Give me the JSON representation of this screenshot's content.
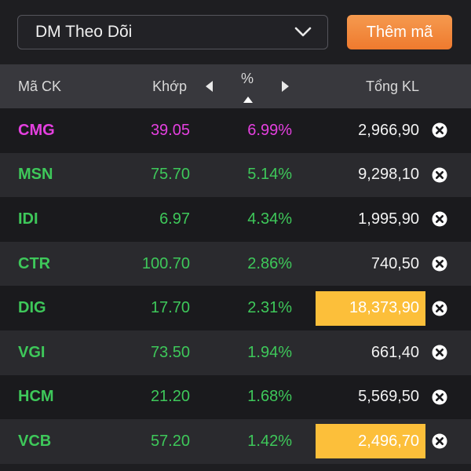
{
  "toolbar": {
    "watchlist_label": "DM Theo Dõi",
    "add_button_label": "Thêm mã"
  },
  "header": {
    "symbol": "Mã CK",
    "price": "Khớp",
    "percent": "%",
    "volume": "Tổng KL"
  },
  "colors": {
    "ceiling": "#e540e0",
    "up": "#3ec85a",
    "highlight": "#fcbf3a",
    "accent": "#ef7a2e"
  },
  "rows": [
    {
      "symbol": "CMG",
      "price": "39.05",
      "pct": "6.99%",
      "volume": "2,966,90",
      "status": "ceiling",
      "highlight": false
    },
    {
      "symbol": "MSN",
      "price": "75.70",
      "pct": "5.14%",
      "volume": "9,298,10",
      "status": "up",
      "highlight": false
    },
    {
      "symbol": "IDI",
      "price": "6.97",
      "pct": "4.34%",
      "volume": "1,995,90",
      "status": "up",
      "highlight": false
    },
    {
      "symbol": "CTR",
      "price": "100.70",
      "pct": "2.86%",
      "volume": "740,50",
      "status": "up",
      "highlight": false
    },
    {
      "symbol": "DIG",
      "price": "17.70",
      "pct": "2.31%",
      "volume": "18,373,90",
      "status": "up",
      "highlight": true
    },
    {
      "symbol": "VGI",
      "price": "73.50",
      "pct": "1.94%",
      "volume": "661,40",
      "status": "up",
      "highlight": false
    },
    {
      "symbol": "HCM",
      "price": "21.20",
      "pct": "1.68%",
      "volume": "5,569,50",
      "status": "up",
      "highlight": false
    },
    {
      "symbol": "VCB",
      "price": "57.20",
      "pct": "1.42%",
      "volume": "2,496,70",
      "status": "up",
      "highlight": true
    }
  ]
}
